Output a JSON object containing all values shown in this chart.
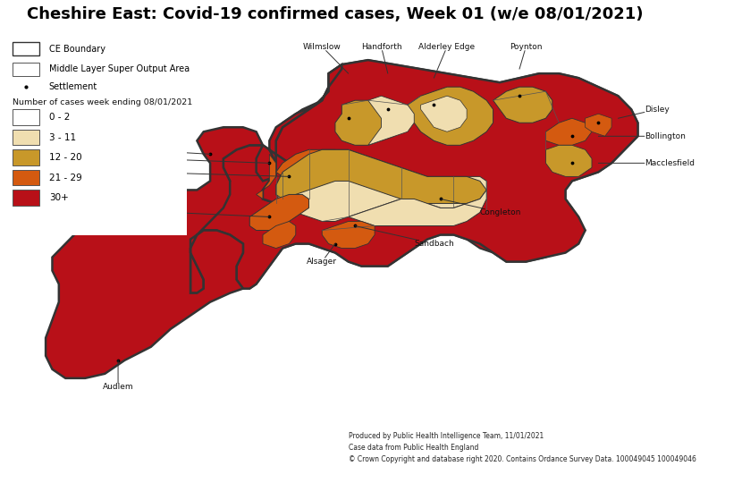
{
  "title": "Cheshire East: Covid-19 confirmed cases, Week 01 (w/e 08/01/2021)",
  "title_fontsize": 13,
  "title_fontweight": "bold",
  "background_color": "#ffffff",
  "legend_items": [
    {
      "label": "0 - 2",
      "facecolor": "#ffffff",
      "edgecolor": "#555555"
    },
    {
      "label": "3 - 11",
      "facecolor": "#f0deb0",
      "edgecolor": "#555555"
    },
    {
      "label": "12 - 20",
      "facecolor": "#c8982a",
      "edgecolor": "#555555"
    },
    {
      "label": "21 - 29",
      "facecolor": "#d45a10",
      "edgecolor": "#555555"
    },
    {
      "label": "30+",
      "facecolor": "#b81018",
      "edgecolor": "#555555"
    }
  ],
  "map_colors": {
    "red": "#b81018",
    "orange": "#d45a10",
    "tan": "#c8982a",
    "cream": "#f0deb0",
    "white": "#ffffff",
    "border": "#333333",
    "inner": "#555555"
  },
  "footer_lines": [
    "Produced by Public Health Intelligence Team, 11/01/2021",
    "Case data from Public Health England",
    "© Crown Copyright and database right 2020. Contains Ordance Survey Data. 100049045 100049046"
  ]
}
